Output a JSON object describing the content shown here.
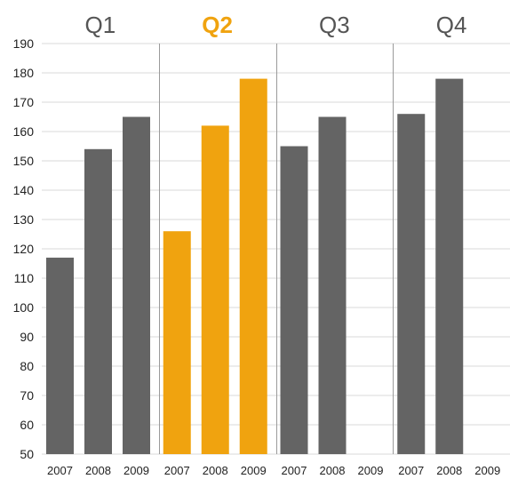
{
  "chart_data": {
    "type": "bar",
    "ylim": [
      50,
      190
    ],
    "yticks": [
      50,
      60,
      70,
      80,
      90,
      100,
      110,
      120,
      130,
      140,
      150,
      160,
      170,
      180,
      190
    ],
    "grid": true,
    "colors": {
      "default": "#646464",
      "highlight": "#f0a30f",
      "grid": "#d8d8d8",
      "divider": "#9a9a9a"
    },
    "highlight_group": "Q2",
    "groups": [
      {
        "label": "Q1",
        "categories": [
          "2007",
          "2008",
          "2009"
        ],
        "values": [
          117,
          154,
          165
        ]
      },
      {
        "label": "Q2",
        "categories": [
          "2007",
          "2008",
          "2009"
        ],
        "values": [
          126,
          162,
          178
        ]
      },
      {
        "label": "Q3",
        "categories": [
          "2007",
          "2008",
          "2009"
        ],
        "values": [
          155,
          165,
          null
        ]
      },
      {
        "label": "Q4",
        "categories": [
          "2007",
          "2008",
          "2009"
        ],
        "values": [
          166,
          178,
          null
        ]
      }
    ]
  }
}
